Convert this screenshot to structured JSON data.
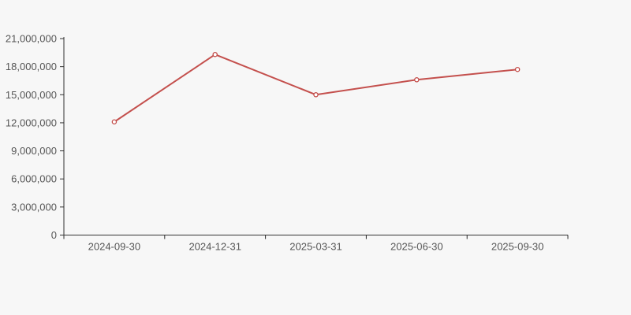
{
  "page": {
    "background_color": "#f7f7f7"
  },
  "chart_data": {
    "type": "line",
    "title": "",
    "xlabel": "",
    "ylabel": "",
    "categories": [
      "2024-09-30",
      "2024-12-31",
      "2025-03-31",
      "2025-06-30",
      "2025-09-30"
    ],
    "values": [
      12100000,
      19300000,
      15000000,
      16600000,
      17700000
    ],
    "ylim": [
      0,
      21000000
    ],
    "ytick_step": 3000000,
    "ytick_labels": [
      "0",
      "3,000,000",
      "6,000,000",
      "9,000,000",
      "12,000,000",
      "15,000,000",
      "18,000,000",
      "21,000,000"
    ],
    "grid": false,
    "legend": false,
    "marker": "open-circle",
    "line_color": "#c4504d",
    "marker_fill": "#ffffff",
    "axis_color": "#333333",
    "label_color": "#555555"
  }
}
